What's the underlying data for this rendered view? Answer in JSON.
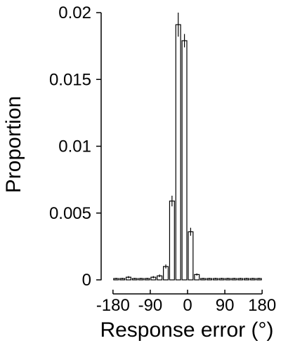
{
  "chart_data": {
    "type": "bar",
    "xlabel": "Response error (°)",
    "ylabel": "Proportion",
    "xlim": [
      -195,
      195
    ],
    "ylim": [
      0,
      0.02
    ],
    "x_ticks": [
      {
        "value": -180,
        "label": "-180"
      },
      {
        "value": -90,
        "label": "-90"
      },
      {
        "value": 0,
        "label": "0"
      },
      {
        "value": 90,
        "label": "90"
      },
      {
        "value": 180,
        "label": "180"
      }
    ],
    "y_ticks": [
      {
        "value": 0,
        "label": "0"
      },
      {
        "value": 0.005,
        "label": "0.005"
      },
      {
        "value": 0.01,
        "label": "0.01"
      },
      {
        "value": 0.015,
        "label": "0.015"
      },
      {
        "value": 0.02,
        "label": "0.02"
      }
    ],
    "bin_width": 15,
    "x": [
      -172.5,
      -157.5,
      -142.5,
      -127.5,
      -112.5,
      -97.5,
      -82.5,
      -67.5,
      -52.5,
      -37.5,
      -22.5,
      -7.5,
      7.5,
      22.5,
      37.5,
      52.5,
      67.5,
      82.5,
      97.5,
      112.5,
      127.5,
      142.5,
      157.5,
      172.5
    ],
    "values": [
      0.0001,
      0.0001,
      0.0002,
      0.0001,
      0.0001,
      0.0001,
      0.0002,
      0.0003,
      0.001,
      0.0059,
      0.0191,
      0.0179,
      0.0036,
      0.0004,
      0.0001,
      0.0001,
      0.0001,
      0.0001,
      0.0001,
      0.0001,
      0.0001,
      0.0001,
      0.0001,
      0.0001
    ],
    "errors": [
      5e-05,
      5e-05,
      8e-05,
      5e-05,
      5e-05,
      5e-05,
      8e-05,
      0.0001,
      0.00015,
      0.0004,
      0.0009,
      0.0005,
      0.0003,
      8e-05,
      5e-05,
      5e-05,
      5e-05,
      5e-05,
      5e-05,
      5e-05,
      5e-05,
      5e-05,
      5e-05,
      5e-05
    ],
    "grid": false,
    "legend": "none"
  }
}
